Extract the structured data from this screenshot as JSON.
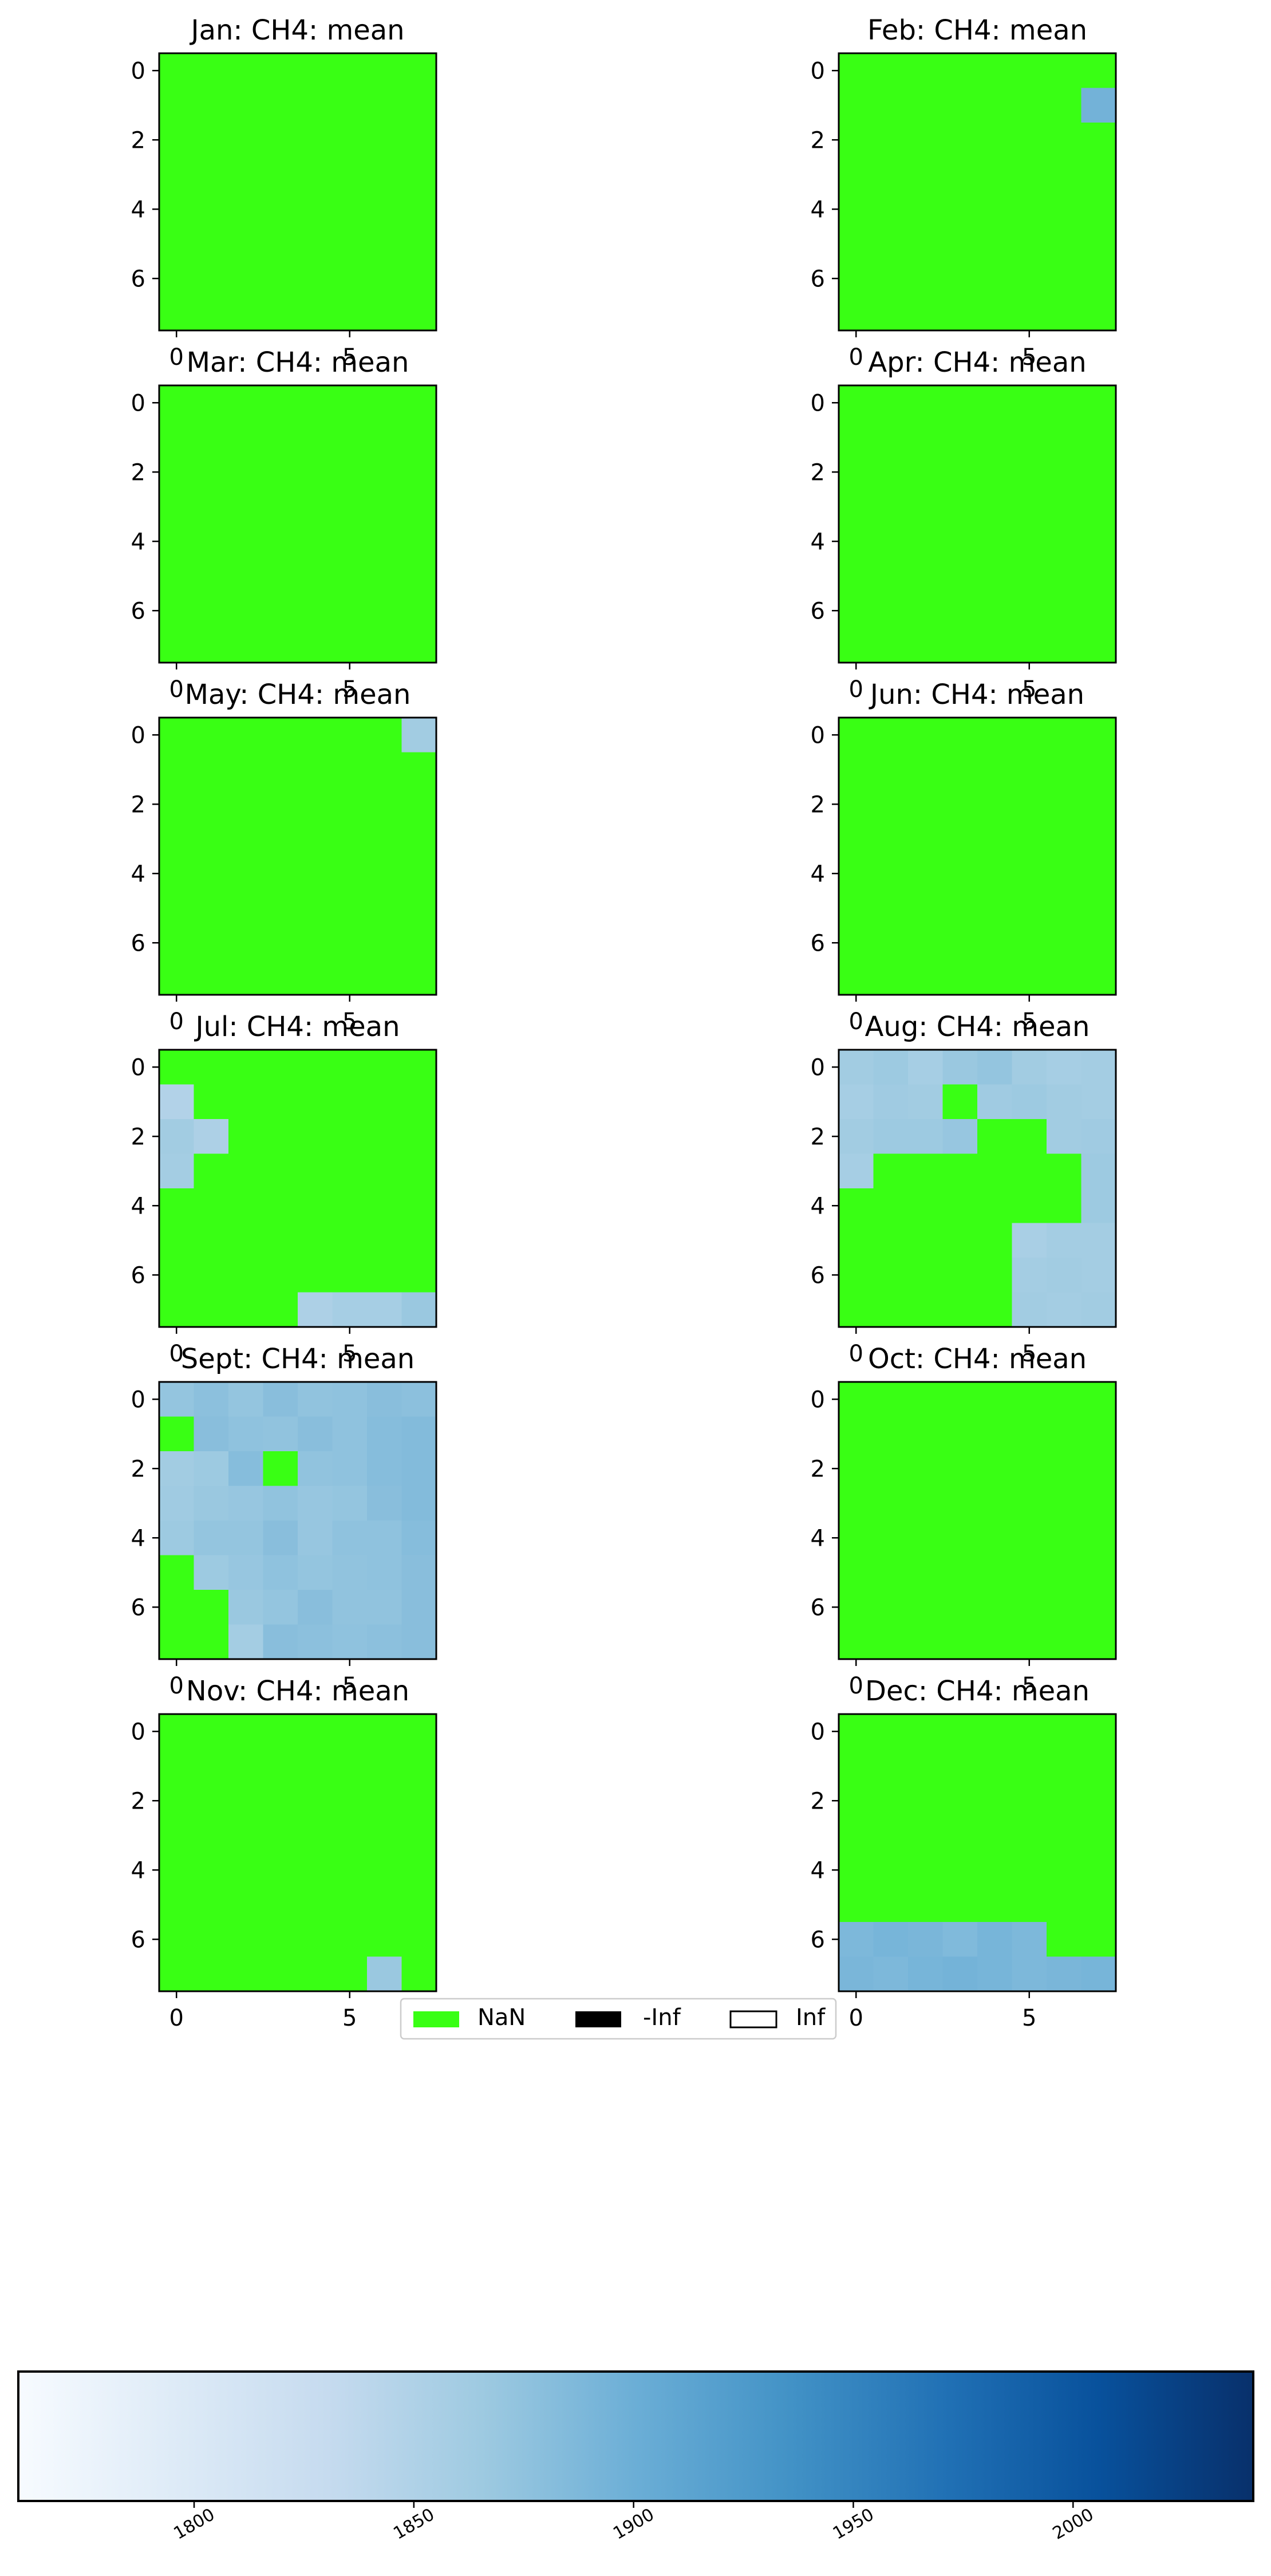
{
  "colors": {
    "nan": "#39ff14",
    "neg_inf": "#000000",
    "pos_inf": "#ffffff",
    "cmap": [
      "#f7fbff",
      "#deebf7",
      "#c6dbef",
      "#9ecae1",
      "#6baed6",
      "#4292c6",
      "#2171b5",
      "#08519c",
      "#08306b"
    ]
  },
  "legend": {
    "items": [
      {
        "label": "NaN",
        "color": "#39ff14"
      },
      {
        "label": "-Inf",
        "color": "#000000"
      },
      {
        "label": "Inf",
        "color": "#ffffff"
      }
    ]
  },
  "colorbar": {
    "vmin": 1760,
    "vmax": 2041,
    "ticks": [
      "1800",
      "1850",
      "1900",
      "1950",
      "2000"
    ]
  },
  "chart_data": [
    {
      "type": "heatmap",
      "title": "Jan: CH4: mean",
      "xticks": [
        "0",
        "5"
      ],
      "yticks": [
        "0",
        "2",
        "4",
        "6"
      ],
      "values": [
        [
          null,
          null,
          null,
          null,
          null,
          null,
          null,
          null
        ],
        [
          null,
          null,
          null,
          null,
          null,
          null,
          null,
          null
        ],
        [
          null,
          null,
          null,
          null,
          null,
          null,
          null,
          null
        ],
        [
          null,
          null,
          null,
          null,
          null,
          null,
          null,
          null
        ],
        [
          null,
          null,
          null,
          null,
          null,
          null,
          null,
          null
        ],
        [
          null,
          null,
          null,
          null,
          null,
          null,
          null,
          null
        ],
        [
          null,
          null,
          null,
          null,
          null,
          null,
          null,
          null
        ],
        [
          null,
          null,
          null,
          null,
          null,
          null,
          null,
          null
        ]
      ]
    },
    {
      "type": "heatmap",
      "title": "Feb: CH4: mean",
      "xticks": [
        "0",
        "5"
      ],
      "yticks": [
        "0",
        "2",
        "4",
        "6"
      ],
      "values": [
        [
          null,
          null,
          null,
          null,
          null,
          null,
          null,
          null
        ],
        [
          null,
          null,
          null,
          null,
          null,
          null,
          null,
          1895
        ],
        [
          null,
          null,
          null,
          null,
          null,
          null,
          null,
          null
        ],
        [
          null,
          null,
          null,
          null,
          null,
          null,
          null,
          null
        ],
        [
          null,
          null,
          null,
          null,
          null,
          null,
          null,
          null
        ],
        [
          null,
          null,
          null,
          null,
          null,
          null,
          null,
          null
        ],
        [
          null,
          null,
          null,
          null,
          null,
          null,
          null,
          null
        ],
        [
          null,
          null,
          null,
          null,
          null,
          null,
          null,
          null
        ]
      ]
    },
    {
      "type": "heatmap",
      "title": "Mar: CH4: mean",
      "xticks": [
        "0",
        "5"
      ],
      "yticks": [
        "0",
        "2",
        "4",
        "6"
      ],
      "values": [
        [
          null,
          null,
          null,
          null,
          null,
          null,
          null,
          null
        ],
        [
          null,
          null,
          null,
          null,
          null,
          null,
          null,
          null
        ],
        [
          null,
          null,
          null,
          null,
          null,
          null,
          null,
          null
        ],
        [
          null,
          null,
          null,
          null,
          null,
          null,
          null,
          null
        ],
        [
          null,
          null,
          null,
          null,
          null,
          null,
          null,
          null
        ],
        [
          null,
          null,
          null,
          null,
          null,
          null,
          null,
          null
        ],
        [
          null,
          null,
          null,
          null,
          null,
          null,
          null,
          null
        ],
        [
          null,
          null,
          null,
          null,
          null,
          null,
          null,
          null
        ]
      ]
    },
    {
      "type": "heatmap",
      "title": "Apr: CH4: mean",
      "xticks": [
        "0",
        "5"
      ],
      "yticks": [
        "0",
        "2",
        "4",
        "6"
      ],
      "values": [
        [
          null,
          null,
          null,
          null,
          null,
          null,
          null,
          null
        ],
        [
          null,
          null,
          null,
          null,
          null,
          null,
          null,
          null
        ],
        [
          null,
          null,
          null,
          null,
          null,
          null,
          null,
          null
        ],
        [
          null,
          null,
          null,
          null,
          null,
          null,
          null,
          null
        ],
        [
          null,
          null,
          null,
          null,
          null,
          null,
          null,
          null
        ],
        [
          null,
          null,
          null,
          null,
          null,
          null,
          null,
          null
        ],
        [
          null,
          null,
          null,
          null,
          null,
          null,
          null,
          null
        ],
        [
          null,
          null,
          null,
          null,
          null,
          null,
          null,
          null
        ]
      ]
    },
    {
      "type": "heatmap",
      "title": "May: CH4: mean",
      "xticks": [
        "0",
        "5"
      ],
      "yticks": [
        "0",
        "2",
        "4",
        "6"
      ],
      "values": [
        [
          null,
          null,
          null,
          null,
          null,
          null,
          null,
          1862
        ],
        [
          null,
          null,
          null,
          null,
          null,
          null,
          null,
          null
        ],
        [
          null,
          null,
          null,
          null,
          null,
          null,
          null,
          null
        ],
        [
          null,
          null,
          null,
          null,
          null,
          null,
          null,
          null
        ],
        [
          null,
          null,
          null,
          null,
          null,
          null,
          null,
          null
        ],
        [
          null,
          null,
          null,
          null,
          null,
          null,
          null,
          null
        ],
        [
          null,
          null,
          null,
          null,
          null,
          null,
          null,
          null
        ],
        [
          null,
          null,
          null,
          null,
          null,
          null,
          null,
          null
        ]
      ]
    },
    {
      "type": "heatmap",
      "title": "Jun: CH4: mean",
      "xticks": [
        "0",
        "5"
      ],
      "yticks": [
        "0",
        "2",
        "4",
        "6"
      ],
      "values": [
        [
          null,
          null,
          null,
          null,
          null,
          null,
          null,
          null
        ],
        [
          null,
          null,
          null,
          null,
          null,
          null,
          null,
          null
        ],
        [
          null,
          null,
          null,
          null,
          null,
          null,
          null,
          null
        ],
        [
          null,
          null,
          null,
          null,
          null,
          null,
          null,
          null
        ],
        [
          null,
          null,
          null,
          null,
          null,
          null,
          null,
          null
        ],
        [
          null,
          null,
          null,
          null,
          null,
          null,
          null,
          null
        ],
        [
          null,
          null,
          null,
          null,
          null,
          null,
          null,
          null
        ],
        [
          null,
          null,
          null,
          null,
          null,
          null,
          null,
          null
        ]
      ]
    },
    {
      "type": "heatmap",
      "title": "Jul: CH4: mean",
      "xticks": [
        "0",
        "5"
      ],
      "yticks": [
        "0",
        "2",
        "4",
        "6"
      ],
      "values": [
        [
          null,
          null,
          null,
          null,
          null,
          null,
          null,
          null
        ],
        [
          1848,
          null,
          null,
          null,
          null,
          null,
          null,
          null
        ],
        [
          1862,
          1852,
          null,
          null,
          null,
          null,
          null,
          null
        ],
        [
          1860,
          null,
          null,
          null,
          null,
          null,
          null,
          null
        ],
        [
          null,
          null,
          null,
          null,
          null,
          null,
          null,
          null
        ],
        [
          null,
          null,
          null,
          null,
          null,
          null,
          null,
          null
        ],
        [
          null,
          null,
          null,
          null,
          null,
          null,
          null,
          null
        ],
        [
          null,
          null,
          null,
          null,
          1852,
          1858,
          1858,
          1868
        ]
      ]
    },
    {
      "type": "heatmap",
      "title": "Aug: CH4: mean",
      "xticks": [
        "0",
        "5"
      ],
      "yticks": [
        "0",
        "2",
        "4",
        "6"
      ],
      "values": [
        [
          1862,
          1866,
          1858,
          1868,
          1872,
          1862,
          1858,
          1860
        ],
        [
          1858,
          1864,
          1862,
          null,
          1864,
          1866,
          1862,
          1860
        ],
        [
          1862,
          1866,
          1866,
          1870,
          null,
          null,
          1862,
          1864
        ],
        [
          1858,
          null,
          null,
          null,
          null,
          null,
          null,
          1866
        ],
        [
          null,
          null,
          null,
          null,
          null,
          null,
          null,
          1866
        ],
        [
          null,
          null,
          null,
          null,
          null,
          1856,
          1860,
          1860
        ],
        [
          null,
          null,
          null,
          null,
          null,
          1860,
          1862,
          1860
        ],
        [
          null,
          null,
          null,
          null,
          null,
          1862,
          1860,
          1862
        ]
      ]
    },
    {
      "type": "heatmap",
      "title": "Sept: CH4: mean",
      "xticks": [
        "0",
        "5"
      ],
      "yticks": [
        "0",
        "2",
        "4",
        "6"
      ],
      "values": [
        [
          1872,
          1878,
          1872,
          1880,
          1874,
          1876,
          1880,
          1878
        ],
        [
          null,
          1880,
          1876,
          1874,
          1880,
          1876,
          1882,
          1884
        ],
        [
          1862,
          1866,
          1882,
          null,
          1874,
          1876,
          1882,
          1884
        ],
        [
          1864,
          1868,
          1870,
          1874,
          1870,
          1872,
          1880,
          1884
        ],
        [
          1866,
          1872,
          1872,
          1880,
          1870,
          1876,
          1876,
          1882
        ],
        [
          null,
          1866,
          1870,
          1876,
          1872,
          1874,
          1876,
          1880
        ],
        [
          null,
          null,
          1868,
          1872,
          1880,
          1874,
          1874,
          1880
        ],
        [
          null,
          null,
          1860,
          1880,
          1878,
          1876,
          1878,
          1880
        ]
      ]
    },
    {
      "type": "heatmap",
      "title": "Oct: CH4: mean",
      "xticks": [
        "0",
        "5"
      ],
      "yticks": [
        "0",
        "2",
        "4",
        "6"
      ],
      "values": [
        [
          null,
          null,
          null,
          null,
          null,
          null,
          null,
          null
        ],
        [
          null,
          null,
          null,
          null,
          null,
          null,
          null,
          null
        ],
        [
          null,
          null,
          null,
          null,
          null,
          null,
          null,
          null
        ],
        [
          null,
          null,
          null,
          null,
          null,
          null,
          null,
          null
        ],
        [
          null,
          null,
          null,
          null,
          null,
          null,
          null,
          null
        ],
        [
          null,
          null,
          null,
          null,
          null,
          null,
          null,
          null
        ],
        [
          null,
          null,
          null,
          null,
          null,
          null,
          null,
          null
        ],
        [
          null,
          null,
          null,
          null,
          null,
          null,
          null,
          null
        ]
      ]
    },
    {
      "type": "heatmap",
      "title": "Nov: CH4: mean",
      "xticks": [
        "0",
        "5"
      ],
      "yticks": [
        "0",
        "2",
        "4",
        "6"
      ],
      "values": [
        [
          null,
          null,
          null,
          null,
          null,
          null,
          null,
          null
        ],
        [
          null,
          null,
          null,
          null,
          null,
          null,
          null,
          null
        ],
        [
          null,
          null,
          null,
          null,
          null,
          null,
          null,
          null
        ],
        [
          null,
          null,
          null,
          null,
          null,
          null,
          null,
          null
        ],
        [
          null,
          null,
          null,
          null,
          null,
          null,
          null,
          null
        ],
        [
          null,
          null,
          null,
          null,
          null,
          null,
          null,
          null
        ],
        [
          null,
          null,
          null,
          null,
          null,
          null,
          null,
          null
        ],
        [
          null,
          null,
          null,
          null,
          null,
          null,
          1868,
          null
        ]
      ]
    },
    {
      "type": "heatmap",
      "title": "Dec: CH4: mean",
      "xticks": [
        "0",
        "5"
      ],
      "yticks": [
        "0",
        "2",
        "4",
        "6"
      ],
      "values": [
        [
          null,
          null,
          null,
          null,
          null,
          null,
          null,
          null
        ],
        [
          null,
          null,
          null,
          null,
          null,
          null,
          null,
          null
        ],
        [
          null,
          null,
          null,
          null,
          null,
          null,
          null,
          null
        ],
        [
          null,
          null,
          null,
          null,
          null,
          null,
          null,
          null
        ],
        [
          null,
          null,
          null,
          null,
          null,
          null,
          null,
          null
        ],
        [
          null,
          null,
          null,
          null,
          null,
          null,
          null,
          null
        ],
        [
          1888,
          1892,
          1890,
          1886,
          1892,
          1888,
          null,
          null
        ],
        [
          1890,
          1888,
          1892,
          1894,
          1892,
          1888,
          1890,
          1892
        ]
      ]
    }
  ]
}
